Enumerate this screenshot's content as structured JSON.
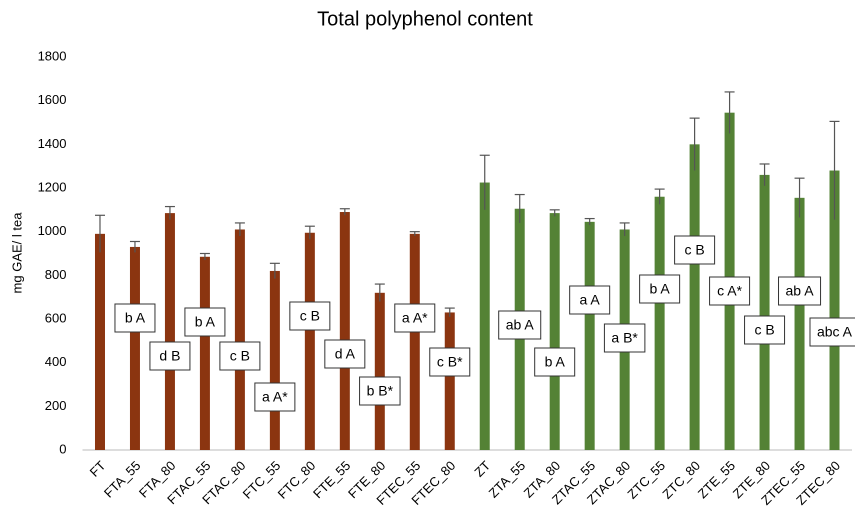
{
  "chart_data": {
    "type": "bar",
    "title": "Total polyphenol content",
    "y_label": "mg GAE/ l tea",
    "categories": [
      "FT",
      "FTA_55",
      "FTA_80",
      "FTAC_55",
      "FTAC_80",
      "FTC_55",
      "FTC_80",
      "FTE_55",
      "FTE_80",
      "FTEC_55",
      "FTEC_80",
      "ZT",
      "ZTA_55",
      "ZTA_80",
      "ZTAC_55",
      "ZTAC_80",
      "ZTC_55",
      "ZTC_80",
      "ZTE_55",
      "ZTE_80",
      "ZTEC_55",
      "ZTEC_80"
    ],
    "values": [
      990,
      930,
      1085,
      885,
      1010,
      820,
      995,
      1090,
      720,
      990,
      630,
      1225,
      1105,
      1085,
      1045,
      1010,
      1160,
      1400,
      1545,
      1260,
      1155,
      1280
    ],
    "errors": [
      85,
      25,
      30,
      15,
      30,
      35,
      30,
      15,
      40,
      10,
      20,
      125,
      65,
      15,
      15,
      30,
      35,
      120,
      95,
      50,
      90,
      225
    ],
    "annotations": [
      null,
      "b A",
      "d B",
      "b A",
      "c B",
      "a A*",
      "c B",
      "d A",
      "b B*",
      "a A*",
      "c B*",
      null,
      "ab A",
      "b A",
      "a A",
      "a B*",
      "b A",
      "c B",
      "c A*",
      "c B",
      "ab A",
      "abc A"
    ],
    "colors": [
      "#8b3510",
      "#8b3510",
      "#8b3510",
      "#8b3510",
      "#8b3510",
      "#8b3510",
      "#8b3510",
      "#8b3510",
      "#8b3510",
      "#8b3510",
      "#8b3510",
      "#548235",
      "#548235",
      "#548235",
      "#548235",
      "#548235",
      "#548235",
      "#548235",
      "#548235",
      "#548235",
      "#548235",
      "#548235"
    ],
    "ylim": [
      0,
      1800
    ],
    "yticks": [
      0,
      200,
      400,
      600,
      800,
      1000,
      1200,
      1400,
      1600,
      1800
    ],
    "grid": false
  }
}
